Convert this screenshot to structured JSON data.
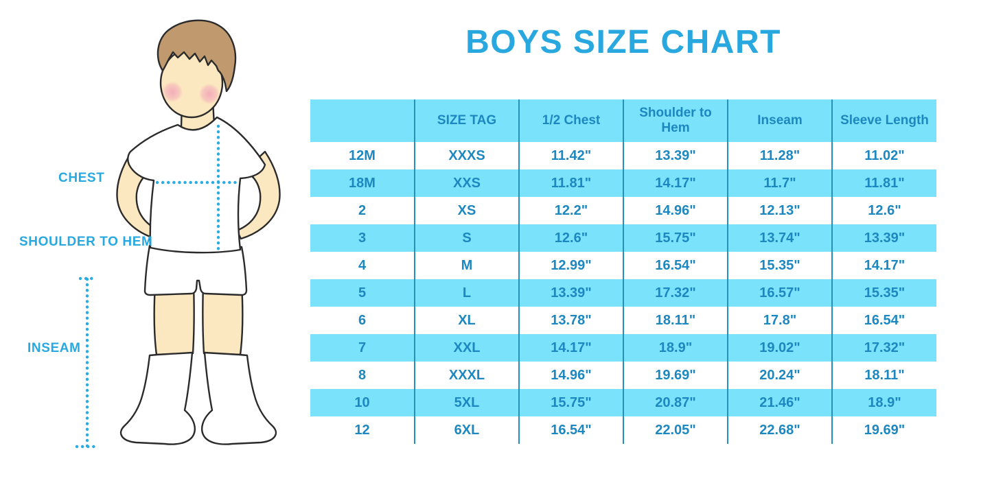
{
  "page": {
    "title": "BOYS SIZE CHART"
  },
  "figure": {
    "description": "cartoon boy wearing white t-shirt, shorts and knee socks with dotted measurement guides",
    "labels": {
      "chest": "CHEST",
      "shoulder_to_hem": "SHOULDER TO HEM",
      "inseam": "INSEAM"
    }
  },
  "colors": {
    "accent": "#29A8E0",
    "tabletext": "#1D87BF",
    "rowalt": "#7BE2FB",
    "divider": "#2491BC",
    "dotted": "#29ACE3",
    "skin": "#FBE7C0",
    "hair": "#C09A6E",
    "outline": "#2B2B2B",
    "blush": "#F2A3B8"
  },
  "chart_data": {
    "type": "table",
    "title": "BOYS SIZE CHART",
    "columns": [
      "",
      "SIZE TAG",
      "1/2 Chest",
      "Shoulder to Hem",
      "Inseam",
      "Sleeve Length"
    ],
    "rows": [
      [
        "12M",
        "XXXS",
        "11.42\"",
        "13.39\"",
        "11.28\"",
        "11.02\""
      ],
      [
        "18M",
        "XXS",
        "11.81\"",
        "14.17\"",
        "11.7\"",
        "11.81\""
      ],
      [
        "2",
        "XS",
        "12.2\"",
        "14.96\"",
        "12.13\"",
        "12.6\""
      ],
      [
        "3",
        "S",
        "12.6\"",
        "15.75\"",
        "13.74\"",
        "13.39\""
      ],
      [
        "4",
        "M",
        "12.99\"",
        "16.54\"",
        "15.35\"",
        "14.17\""
      ],
      [
        "5",
        "L",
        "13.39\"",
        "17.32\"",
        "16.57\"",
        "15.35\""
      ],
      [
        "6",
        "XL",
        "13.78\"",
        "18.11\"",
        "17.8\"",
        "16.54\""
      ],
      [
        "7",
        "XXL",
        "14.17\"",
        "18.9\"",
        "19.02\"",
        "17.32\""
      ],
      [
        "8",
        "XXXL",
        "14.96\"",
        "19.69\"",
        "20.24\"",
        "18.11\""
      ],
      [
        "10",
        "5XL",
        "15.75\"",
        "20.87\"",
        "21.46\"",
        "18.9\""
      ],
      [
        "12",
        "6XL",
        "16.54\"",
        "22.05\"",
        "22.68\"",
        "19.69\""
      ]
    ],
    "layout": {
      "header_fill": "#7BE2FB",
      "alternating_row_fill": [
        "#FFFFFF",
        "#7BE2FB"
      ],
      "column_dividers": true,
      "horizontal_gridlines": false
    }
  }
}
